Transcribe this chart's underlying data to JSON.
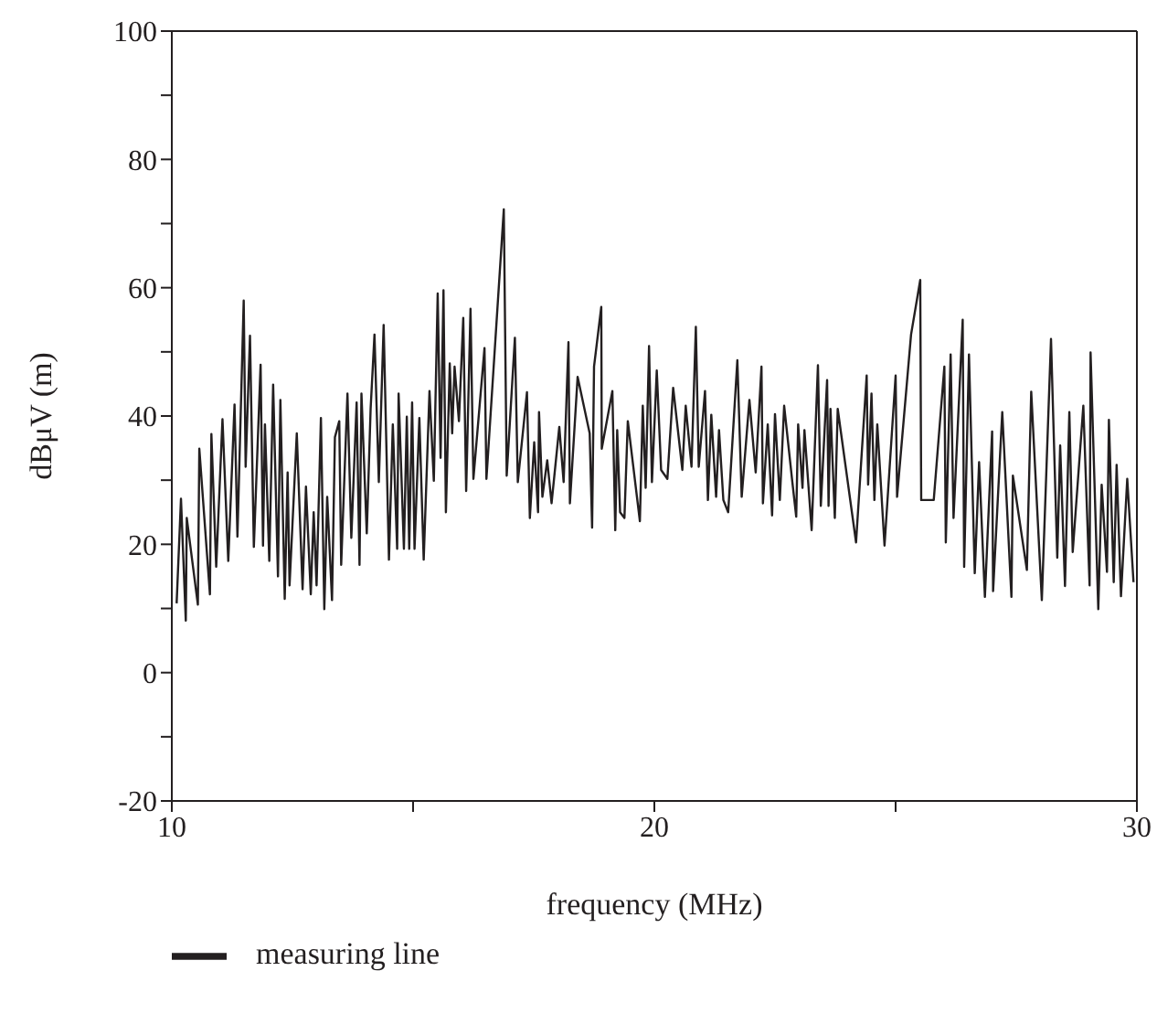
{
  "chart_data": {
    "type": "line",
    "xlabel": "frequency (MHz)",
    "ylabel": "dBμV (m)",
    "xlim": [
      10,
      30
    ],
    "ylim": [
      -20,
      100
    ],
    "xticks": [
      10,
      {
        "value": 15,
        "label": null
      },
      20,
      {
        "value": 25,
        "label": null
      },
      30
    ],
    "yticks": [
      -20,
      {
        "value": -10,
        "label": null
      },
      0,
      {
        "value": 10,
        "label": null
      },
      20,
      {
        "value": 30,
        "label": null
      },
      40,
      {
        "value": 50,
        "label": null
      },
      60,
      {
        "value": 70,
        "label": null
      },
      80,
      {
        "value": 90,
        "label": null
      },
      100
    ],
    "grid": false,
    "legend": "bottom left",
    "marker": "none",
    "line_style": "solid",
    "series": [
      {
        "name": "measuring line",
        "color": "#231f20",
        "x": [
          10.1,
          10.19,
          10.29,
          10.31,
          10.54,
          10.57,
          10.79,
          10.82,
          10.92,
          11.05,
          11.17,
          11.3,
          11.36,
          11.49,
          11.53,
          11.62,
          11.7,
          11.84,
          11.89,
          11.93,
          12.02,
          12.1,
          12.2,
          12.25,
          12.34,
          12.4,
          12.44,
          12.59,
          12.71,
          12.78,
          12.88,
          12.94,
          13.0,
          13.09,
          13.16,
          13.22,
          13.32,
          13.38,
          13.47,
          13.51,
          13.64,
          13.72,
          13.83,
          13.89,
          13.93,
          14.04,
          14.12,
          14.2,
          14.29,
          14.39,
          14.5,
          14.58,
          14.67,
          14.7,
          14.81,
          14.87,
          14.92,
          14.98,
          15.03,
          15.13,
          15.22,
          15.34,
          15.43,
          15.51,
          15.57,
          15.63,
          15.68,
          15.76,
          15.81,
          15.86,
          15.95,
          16.04,
          16.1,
          16.19,
          16.25,
          16.48,
          16.52,
          16.88,
          16.94,
          17.11,
          17.17,
          17.36,
          17.42,
          17.51,
          17.59,
          17.61,
          17.68,
          17.78,
          17.87,
          18.03,
          18.12,
          18.22,
          18.25,
          18.41,
          18.66,
          18.71,
          18.75,
          18.9,
          18.91,
          19.13,
          19.19,
          19.23,
          19.29,
          19.38,
          19.45,
          19.7,
          19.76,
          19.82,
          19.89,
          19.95,
          20.05,
          20.14,
          20.27,
          20.39,
          20.58,
          20.65,
          20.77,
          20.86,
          20.92,
          21.05,
          21.11,
          21.18,
          21.28,
          21.34,
          21.43,
          21.53,
          21.72,
          21.81,
          21.97,
          22.1,
          22.22,
          22.25,
          22.35,
          22.44,
          22.5,
          22.6,
          22.69,
          22.86,
          22.94,
          22.98,
          23.07,
          23.11,
          23.26,
          23.39,
          23.45,
          23.58,
          23.61,
          23.65,
          23.74,
          23.8,
          24.18,
          24.4,
          24.43,
          24.5,
          24.56,
          24.62,
          24.77,
          25.0,
          25.03,
          25.32,
          25.51,
          25.53,
          25.79,
          26.01,
          26.04,
          26.14,
          26.2,
          26.39,
          26.42,
          26.52,
          26.64,
          26.73,
          26.85,
          27.0,
          27.02,
          27.21,
          27.4,
          27.43,
          27.72,
          27.81,
          28.03,
          28.22,
          28.35,
          28.41,
          28.51,
          28.6,
          28.67,
          28.89,
          29.02,
          29.04,
          29.2,
          29.27,
          29.38,
          29.42,
          29.52,
          29.58,
          29.67,
          29.8,
          29.93
        ],
        "values": [
          10.8,
          27.1,
          8.1,
          24.1,
          10.6,
          34.9,
          12.2,
          37.2,
          16.5,
          39.5,
          17.4,
          41.8,
          21.2,
          58.0,
          32.1,
          52.5,
          19.6,
          48.0,
          19.8,
          38.7,
          17.4,
          44.9,
          15.0,
          42.5,
          11.5,
          31.2,
          13.6,
          37.3,
          13.0,
          29.0,
          12.2,
          25.0,
          13.6,
          39.7,
          9.9,
          27.4,
          11.3,
          36.7,
          39.2,
          16.8,
          43.5,
          21.0,
          42.1,
          16.8,
          43.5,
          21.7,
          41.1,
          52.7,
          29.7,
          54.2,
          17.6,
          38.7,
          19.3,
          43.5,
          19.3,
          39.9,
          19.3,
          42.1,
          19.3,
          39.7,
          17.6,
          43.9,
          29.9,
          59.1,
          33.5,
          59.6,
          25.0,
          48.2,
          37.3,
          47.7,
          39.2,
          55.3,
          28.3,
          56.7,
          30.2,
          50.6,
          30.2,
          72.2,
          30.7,
          52.2,
          29.7,
          43.7,
          24.1,
          35.9,
          25.0,
          40.6,
          27.4,
          33.1,
          26.4,
          38.3,
          29.7,
          51.5,
          26.4,
          46.1,
          37.3,
          22.6,
          47.7,
          57.0,
          34.9,
          43.9,
          22.2,
          37.8,
          25.0,
          24.1,
          39.2,
          23.6,
          41.6,
          28.8,
          50.9,
          29.7,
          47.1,
          31.6,
          30.2,
          44.4,
          31.6,
          41.6,
          32.1,
          53.9,
          32.1,
          43.9,
          26.9,
          40.2,
          27.4,
          37.8,
          26.9,
          25.0,
          48.7,
          27.4,
          42.5,
          31.2,
          47.7,
          26.4,
          38.7,
          24.5,
          40.3,
          26.9,
          41.6,
          29.7,
          24.3,
          38.7,
          28.8,
          37.8,
          22.2,
          47.9,
          26.0,
          45.6,
          26.0,
          41.1,
          24.1,
          41.1,
          20.3,
          46.3,
          29.3,
          43.5,
          26.9,
          38.7,
          19.8,
          46.3,
          27.4,
          52.7,
          61.2,
          26.9,
          26.9,
          47.7,
          20.3,
          49.6,
          24.1,
          55.0,
          16.5,
          49.6,
          15.5,
          32.8,
          11.8,
          37.6,
          12.7,
          40.6,
          11.8,
          30.7,
          16.0,
          43.8,
          11.3,
          52.0,
          17.9,
          35.4,
          13.5,
          40.6,
          18.8,
          41.6,
          13.6,
          49.9,
          9.9,
          29.3,
          15.7,
          39.4,
          14.1,
          32.4,
          11.9,
          30.2,
          14.1
        ]
      }
    ]
  }
}
